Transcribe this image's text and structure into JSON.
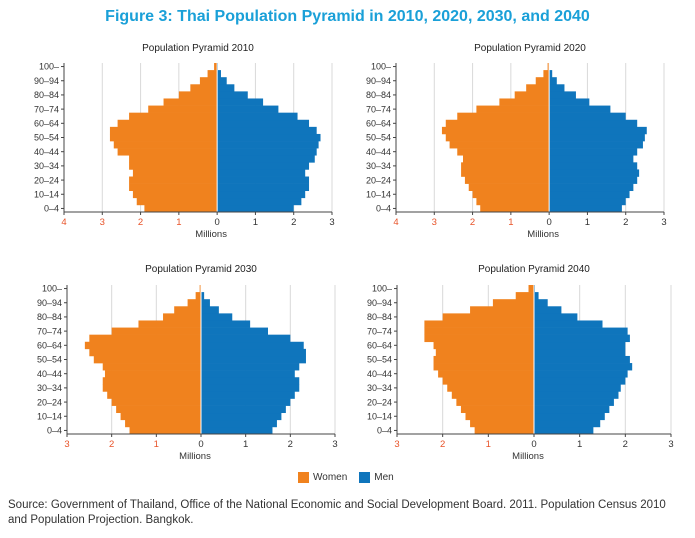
{
  "figure_title": "Figure 3: Thai Population Pyramid in 2010, 2020, 2030, and 2040",
  "source": "Source: Government of Thailand, Office of the National Economic and Social Development Board. 2011. Population Census 2010 and Population Projection. Bangkok.",
  "legend": {
    "women": "Women",
    "men": "Men"
  },
  "colors": {
    "women": "#f0821e",
    "men": "#0f75bc",
    "axis_negative": "#e8542a",
    "title": "#1aa0d8",
    "grid": "#d9d9d9"
  },
  "chart_data": [
    {
      "type": "bar",
      "title": "Population Pyramid 2010",
      "xlabel": "Millions",
      "xlim": [
        -4,
        3
      ],
      "xticks": [
        -4,
        -3,
        -2,
        -1,
        0,
        1,
        2,
        3
      ],
      "xtick_labels": [
        "4",
        "3",
        "2",
        "1",
        "0",
        "1",
        "2",
        "3"
      ],
      "age_labels": [
        "0–4",
        "10–14",
        "20–24",
        "30–34",
        "40–44",
        "50–54",
        "60–64",
        "70–74",
        "80–84",
        "90–94",
        "100–"
      ],
      "series": [
        {
          "name": "Women",
          "values": [
            1.9,
            2.1,
            2.2,
            2.3,
            2.3,
            2.2,
            2.3,
            2.3,
            2.6,
            2.7,
            2.8,
            2.8,
            2.6,
            2.3,
            1.8,
            1.4,
            1.0,
            0.7,
            0.45,
            0.25,
            0.08
          ]
        },
        {
          "name": "Men",
          "values": [
            2.0,
            2.2,
            2.3,
            2.4,
            2.4,
            2.3,
            2.4,
            2.55,
            2.6,
            2.65,
            2.7,
            2.6,
            2.4,
            2.1,
            1.6,
            1.2,
            0.8,
            0.45,
            0.25,
            0.1,
            0.02
          ]
        }
      ]
    },
    {
      "type": "bar",
      "title": "Population Pyramid 2020",
      "xlabel": "Millions",
      "xlim": [
        -4,
        3
      ],
      "xticks": [
        -4,
        -3,
        -2,
        -1,
        0,
        1,
        2,
        3
      ],
      "xtick_labels": [
        "4",
        "3",
        "2",
        "1",
        "0",
        "1",
        "2",
        "3"
      ],
      "age_labels": [
        "0–4",
        "10–14",
        "20–24",
        "30–34",
        "40–44",
        "50–54",
        "60–64",
        "70–74",
        "80–84",
        "90–94",
        "100–"
      ],
      "series": [
        {
          "name": "Women",
          "values": [
            1.8,
            1.9,
            2.0,
            2.1,
            2.2,
            2.3,
            2.3,
            2.25,
            2.4,
            2.6,
            2.7,
            2.8,
            2.7,
            2.4,
            1.9,
            1.3,
            0.9,
            0.6,
            0.35,
            0.15,
            0.04
          ]
        },
        {
          "name": "Men",
          "values": [
            1.9,
            2.0,
            2.1,
            2.2,
            2.3,
            2.35,
            2.3,
            2.2,
            2.3,
            2.45,
            2.5,
            2.55,
            2.3,
            2.0,
            1.6,
            1.05,
            0.7,
            0.4,
            0.2,
            0.08,
            0.01
          ]
        }
      ]
    },
    {
      "type": "bar",
      "title": "Population Pyramid 2030",
      "xlabel": "Millions",
      "xlim": [
        -3,
        3
      ],
      "xticks": [
        -3,
        -2,
        -1,
        0,
        1,
        2,
        3
      ],
      "xtick_labels": [
        "3",
        "2",
        "1",
        "0",
        "1",
        "2",
        "3"
      ],
      "age_labels": [
        "0–4",
        "10–14",
        "20–24",
        "30–34",
        "40–44",
        "50–54",
        "60–64",
        "70–74",
        "80–84",
        "90–94",
        "100–"
      ],
      "series": [
        {
          "name": "Women",
          "values": [
            1.6,
            1.7,
            1.8,
            1.9,
            2.0,
            2.1,
            2.2,
            2.2,
            2.15,
            2.2,
            2.4,
            2.5,
            2.6,
            2.5,
            2.0,
            1.4,
            0.85,
            0.6,
            0.3,
            0.12,
            0.03
          ]
        },
        {
          "name": "Men",
          "values": [
            1.6,
            1.7,
            1.8,
            1.9,
            2.0,
            2.1,
            2.2,
            2.2,
            2.1,
            2.2,
            2.35,
            2.35,
            2.3,
            2.0,
            1.5,
            1.1,
            0.7,
            0.4,
            0.2,
            0.07,
            0.01
          ]
        }
      ]
    },
    {
      "type": "bar",
      "title": "Population Pyramid 2040",
      "xlabel": "Millions",
      "xlim": [
        -3,
        3
      ],
      "xticks": [
        -3,
        -2,
        -1,
        0,
        1,
        2,
        3
      ],
      "xtick_labels": [
        "3",
        "2",
        "1",
        "0",
        "1",
        "2",
        "3"
      ],
      "age_labels": [
        "0–4",
        "10–14",
        "20–24",
        "30–34",
        "40–44",
        "50–54",
        "60–64",
        "70–74",
        "80–84",
        "90–94",
        "100–"
      ],
      "series": [
        {
          "name": "Women",
          "values": [
            1.3,
            1.4,
            1.5,
            1.6,
            1.7,
            1.8,
            1.9,
            2.0,
            2.1,
            2.2,
            2.2,
            2.15,
            2.2,
            2.4,
            2.4,
            2.4,
            2.0,
            1.4,
            0.9,
            0.4,
            0.12
          ]
        },
        {
          "name": "Men",
          "values": [
            1.3,
            1.45,
            1.55,
            1.65,
            1.75,
            1.85,
            1.9,
            2.0,
            2.05,
            2.15,
            2.1,
            2.0,
            2.0,
            2.1,
            2.05,
            1.5,
            0.95,
            0.6,
            0.3,
            0.1,
            0.02
          ]
        }
      ]
    }
  ]
}
